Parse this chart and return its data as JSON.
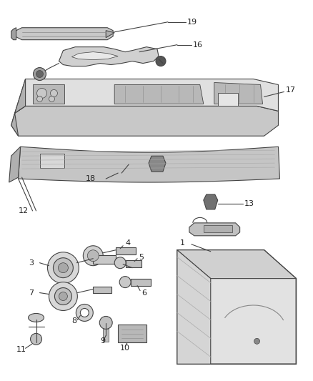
{
  "bg_color": "#ffffff",
  "fig_width": 4.38,
  "fig_height": 5.33,
  "dpi": 100,
  "line_color": "#444444",
  "text_color": "#222222",
  "light_gray": "#d8d8d8",
  "mid_gray": "#b0b0b0",
  "dark_gray": "#808080",
  "white": "#ffffff"
}
